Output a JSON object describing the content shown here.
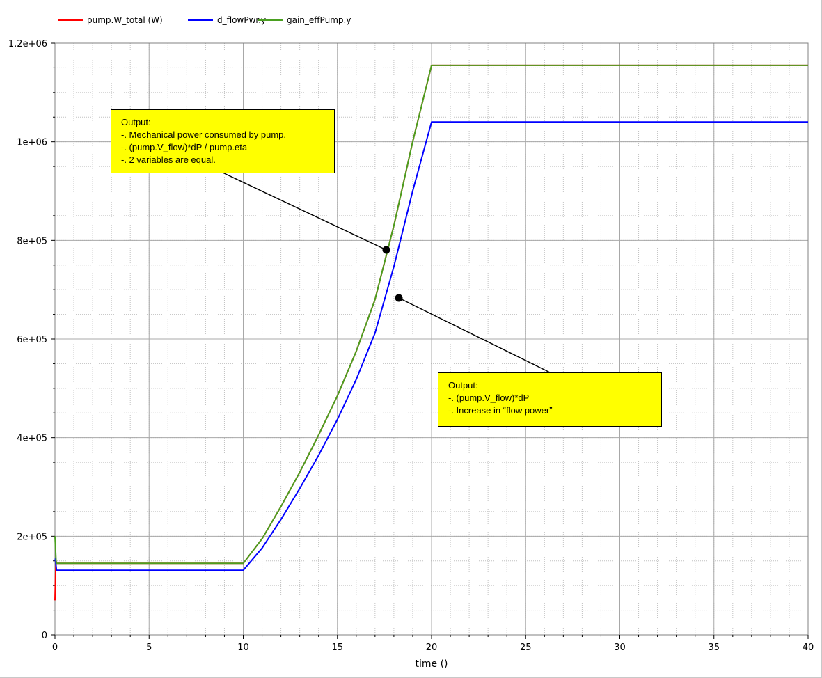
{
  "legend": [
    {
      "name": "pump.W_total (W)",
      "color": "#ff0000"
    },
    {
      "name": "d_flowPwr.y",
      "color": "#0000ff"
    },
    {
      "name": "gain_effPump.y",
      "color": "#4aa020"
    }
  ],
  "annotations": [
    {
      "lines": [
        "Output:",
        "-. Mechanical power consumed by pump.",
        "-. (pump.V_flow)*dP / pump.eta",
        "-. 2 variables are equal."
      ]
    },
    {
      "lines": [
        "Output:",
        "-. (pump.V_flow)*dP",
        "-. Increase in “flow power”"
      ]
    }
  ],
  "chart_data": {
    "type": "line",
    "title": "",
    "xlabel": "time ()",
    "ylabel": "",
    "xlim": [
      0,
      40
    ],
    "ylim": [
      0,
      1200000
    ],
    "x_ticks": [
      0,
      5,
      10,
      15,
      20,
      25,
      30,
      35,
      40
    ],
    "x_tick_labels": [
      "0",
      "5",
      "10",
      "15",
      "20",
      "25",
      "30",
      "35",
      "40"
    ],
    "y_ticks": [
      0,
      200000,
      400000,
      600000,
      800000,
      1000000,
      1200000
    ],
    "y_tick_labels": [
      "0",
      "2e+05",
      "4e+05",
      "6e+05",
      "8e+05",
      "1e+06",
      "1.2e+06"
    ],
    "grid": true,
    "legend_position": "top-left",
    "series": [
      {
        "name": "pump.W_total (W)",
        "color": "#ff0000",
        "x": [
          0,
          0.03,
          0.06,
          0.08,
          0.1,
          10,
          11,
          12,
          13,
          14,
          15,
          16,
          17,
          18,
          19,
          20,
          40
        ],
        "y": [
          70000,
          120000,
          150000,
          145000,
          145000,
          145000,
          195000,
          260000,
          330000,
          405000,
          485000,
          575000,
          680000,
          830000,
          1000000,
          1155000,
          1155000
        ]
      },
      {
        "name": "d_flowPwr.y",
        "color": "#0000ff",
        "x": [
          0,
          0.03,
          0.06,
          0.08,
          0.1,
          10,
          11,
          12,
          13,
          14,
          15,
          16,
          17,
          18,
          19,
          20,
          40
        ],
        "y": [
          150000,
          155000,
          140000,
          131000,
          131000,
          131000,
          176000,
          234000,
          297000,
          364000,
          437000,
          518000,
          612000,
          747000,
          900000,
          1040000,
          1040000
        ]
      },
      {
        "name": "gain_effPump.y",
        "color": "#4aa020",
        "x": [
          0,
          0.03,
          0.06,
          0.08,
          0.1,
          10,
          11,
          12,
          13,
          14,
          15,
          16,
          17,
          18,
          19,
          20,
          40
        ],
        "y": [
          200000,
          175000,
          150000,
          145000,
          145000,
          145000,
          195000,
          260000,
          330000,
          405000,
          485000,
          575000,
          680000,
          830000,
          1000000,
          1155000,
          1155000
        ]
      }
    ]
  }
}
